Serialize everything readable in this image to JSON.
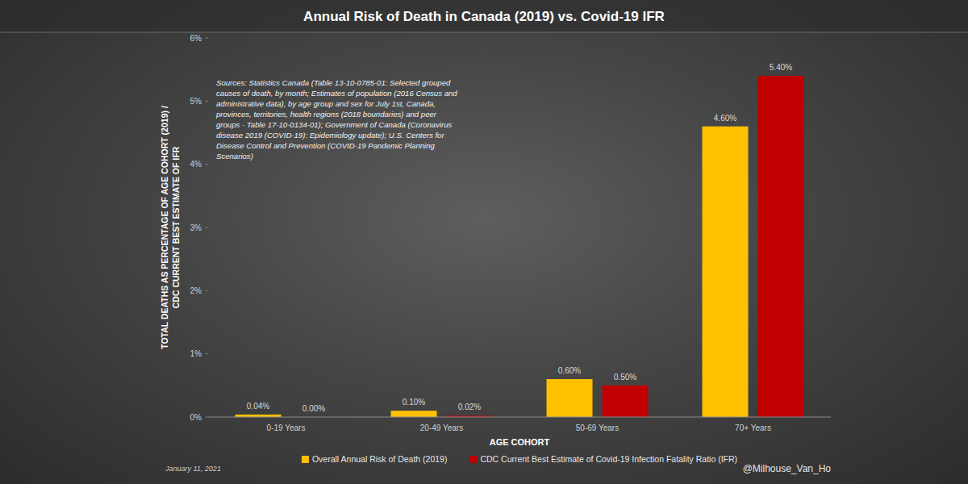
{
  "chart_data": {
    "type": "bar",
    "title": "Annual Risk of Death in Canada (2019) vs. Covid-19 IFR",
    "x_label": "AGE COHORT",
    "y_label": [
      "TOTAL DEATHS AS PERCENTAGE OF AGE COHORT (2019) /",
      "CDC CURRENT BEST ESTIMATE OF IFR"
    ],
    "annotations": [
      "Sources: Statistics Canada (Table 13-10-0785-01: Selected grouped causes of death, by month; Estimates of population (2016 Census and administrative data), by age group and sex for July 1st, Canada, provinces, territories, health regions (2018 boundaries) and peer groups - Table 17-10-0134-01); Government of Canada (Coronavirus disease 2019 (COVID-19): Epidemiology update); U.S. Centers for Disease Control and Prevention (COVID-19 Pandemic Planning Scenarios)",
      "January 11, 2021",
      "@Milhouse_Van_Ho"
    ],
    "categories": [
      "0-19 Years",
      "20-49 Years",
      "50-69 Years",
      "70+ Years"
    ],
    "series": [
      {
        "name": "Overall Annual Risk of Death (2019)",
        "color": "#ffc000",
        "values": [
          0.04,
          0.1,
          0.6,
          4.6
        ],
        "value_labels": [
          "0.04%",
          "0.10%",
          "0.60%",
          "4.60%"
        ]
      },
      {
        "name": "CDC Current Best Estimate of Covid-19 Infection Fatality Ratio (IFR)",
        "color": "#c00000",
        "values": [
          0,
          0.02,
          0.5,
          5.4
        ],
        "value_labels": [
          "0.00%",
          "0.02%",
          "0.50%",
          "5.40%"
        ]
      }
    ],
    "ylim": [
      0,
      6
    ],
    "yticks": [
      {
        "value": 0,
        "label": "0%"
      },
      {
        "value": 1,
        "label": "1%"
      },
      {
        "value": 2,
        "label": "2%"
      },
      {
        "value": 3,
        "label": "3%"
      },
      {
        "value": 4,
        "label": "4%"
      },
      {
        "value": 5,
        "label": "5%"
      },
      {
        "value": 6,
        "label": "6%"
      }
    ],
    "grid": false,
    "legend": "bottom",
    "data_labels": true
  }
}
